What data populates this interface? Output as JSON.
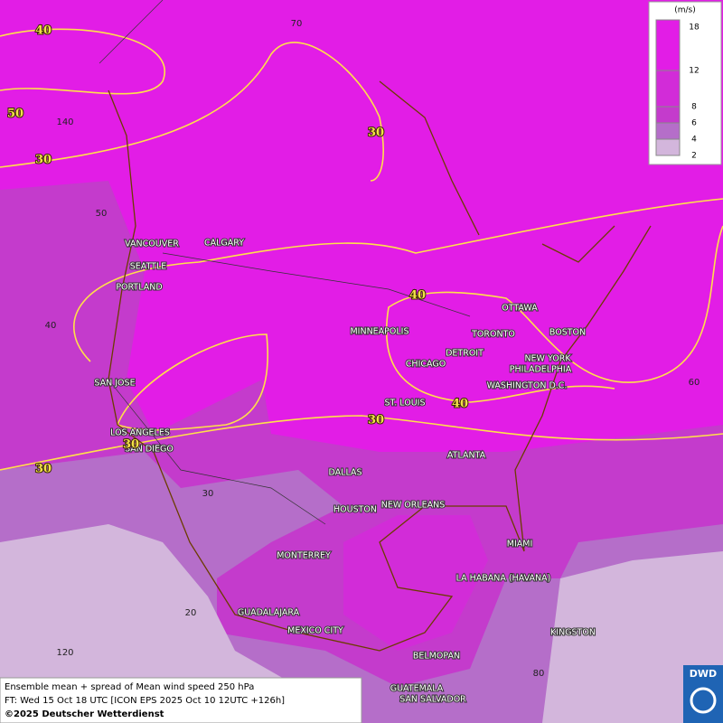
{
  "map": {
    "cities": [
      "VANCOUVER",
      "CALGARY",
      "SEATTLE",
      "PORTLAND",
      "SAN JOSE",
      "LOS ANGELES",
      "SAN DIEGO",
      "DALLAS",
      "HOUSTON",
      "NEW ORLEANS",
      "MONTERREY",
      "GUADALAJARA",
      "MEXICO CITY",
      "BELMOPAN",
      "GUATEMALA",
      "SAN SALVADOR",
      "KINGSTON",
      "LA HABANA (HAVANA)",
      "MIAMI",
      "ATLANTA",
      "ST. LOUIS",
      "CHICAGO",
      "DETROIT",
      "MINNEAPOLIS",
      "TORONTO",
      "OTTAWA",
      "BOSTON",
      "NEW YORK",
      "PHILADELPHIA",
      "WASHINGTON D.C."
    ],
    "contour_labels": [
      40,
      50,
      30,
      30,
      40,
      40,
      30,
      30,
      30
    ],
    "graticule_labels": [
      70,
      140,
      50,
      40,
      60,
      30,
      20,
      120,
      80
    ]
  },
  "legend": {
    "unit": "(m/s)",
    "ticks": [
      18,
      12,
      8,
      6,
      4,
      2
    ]
  },
  "caption": {
    "line1": "Ensemble mean + spread of Mean wind speed 250 hPa",
    "line2": "FT: Wed 15 Oct 18 UTC [ICON EPS 2025 Oct 10 12UTC +126h]",
    "line3": "©2025 Deutscher Wetterdienst"
  },
  "logo": "DWD"
}
